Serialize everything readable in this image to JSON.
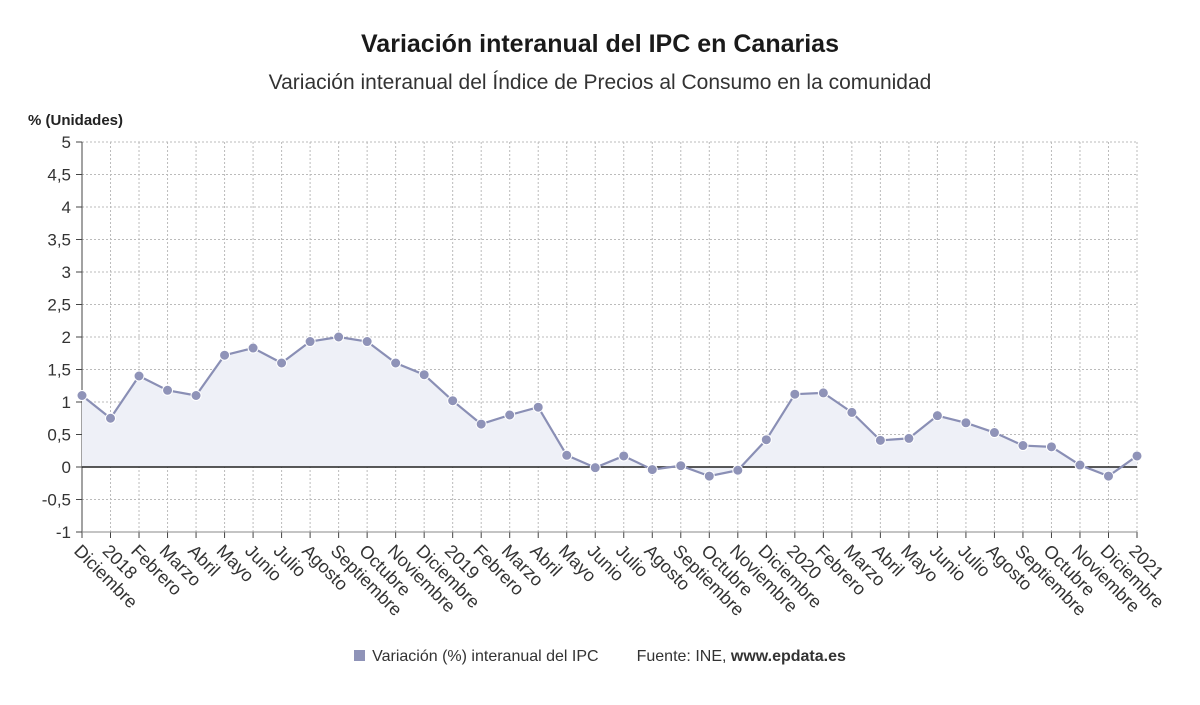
{
  "title": "Variación interanual del IPC en Canarias",
  "subtitle": "Variación interanual del Índice de Precios al Consumo en la comunidad",
  "legend": {
    "series_label": "Variación (%) interanual del IPC",
    "source_prefix": "Fuente: INE, ",
    "source_site": "www.epdata.es"
  },
  "colors": {
    "series": "#8a8fb5",
    "series_fill": "#eef0f7",
    "marker": "#8f93b8",
    "zero_line": "#222222",
    "grid": "#bbbbbb"
  },
  "chart_data": {
    "type": "line",
    "title": "Variación interanual del IPC en Canarias",
    "subtitle": "Variación interanual del Índice de Precios al Consumo en la comunidad",
    "ylabel": "% (Unidades)",
    "xlabel": "",
    "ylim": [
      -1,
      5
    ],
    "yticks": [
      "-1",
      "-0,5",
      "0",
      "0,5",
      "1",
      "1,5",
      "2",
      "2,5",
      "3",
      "3,5",
      "4",
      "4,5",
      "5"
    ],
    "grid": true,
    "legend_position": "bottom",
    "categories": [
      "Diciembre",
      "2018",
      "Febrero",
      "Marzo",
      "Abril",
      "Mayo",
      "Junio",
      "Julio",
      "Agosto",
      "Septiembre",
      "Octubre",
      "Noviembre",
      "Diciembre",
      "2019",
      "Febrero",
      "Marzo",
      "Abril",
      "Mayo",
      "Junio",
      "Julio",
      "Agosto",
      "Septiembre",
      "Octubre",
      "Noviembre",
      "Diciembre",
      "2020",
      "Febrero",
      "Marzo",
      "Abril",
      "Mayo",
      "Junio",
      "Julio",
      "Agosto",
      "Septiembre",
      "Octubre",
      "Noviembre",
      "Diciembre",
      "2021"
    ],
    "series": [
      {
        "name": "Variación (%) interanual del IPC",
        "values": [
          1.1,
          0.75,
          1.4,
          1.18,
          1.1,
          1.72,
          1.83,
          1.6,
          1.93,
          2.0,
          1.93,
          1.6,
          1.42,
          1.02,
          0.66,
          0.8,
          0.92,
          0.18,
          -0.01,
          0.17,
          -0.04,
          0.02,
          -0.14,
          -0.05,
          0.42,
          1.12,
          1.14,
          0.84,
          0.41,
          0.44,
          0.79,
          0.68,
          0.53,
          0.33,
          0.31,
          0.03,
          -0.14,
          0.17
        ]
      }
    ]
  }
}
